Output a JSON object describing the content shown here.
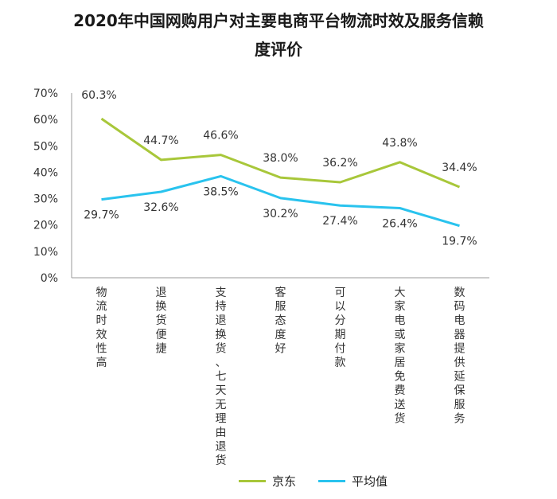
{
  "chart_data": {
    "type": "line",
    "title_line1": "2020年中国网购用户对主要电商平台物流时效及服务信赖",
    "title_line2": "度评价",
    "categories": [
      "物流时效性高",
      "退换货便捷",
      "支持退换货、七天无理由退货",
      "客服态度好",
      "可以分期付款",
      "大家电或家居免费送货",
      "数码电器提供延保服务"
    ],
    "series": [
      {
        "name": "京东",
        "color": "#a8c73a",
        "values": [
          60.3,
          44.7,
          46.6,
          38.0,
          36.2,
          43.8,
          34.4
        ]
      },
      {
        "name": "平均值",
        "color": "#29c3ee",
        "values": [
          29.7,
          32.6,
          38.5,
          30.2,
          27.4,
          26.4,
          19.7
        ]
      }
    ],
    "yticks": [
      "0%",
      "10%",
      "20%",
      "30%",
      "40%",
      "50%",
      "60%",
      "70%"
    ],
    "ylim": [
      0,
      70
    ],
    "grid": false,
    "legend_position": "bottom"
  }
}
